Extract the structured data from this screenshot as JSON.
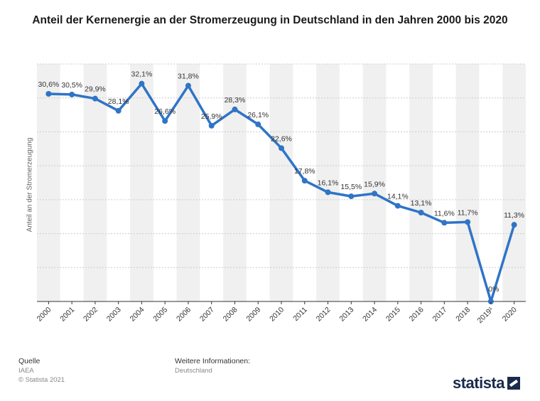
{
  "title": "Anteil der Kernenergie an der Stromerzeugung in Deutschland in den Jahren 2000 bis 2020",
  "footer": {
    "source_label": "Quelle",
    "source_value": "IAEA",
    "copyright": "© Statista 2021",
    "info_label": "Weitere Informationen:",
    "info_value": "Deutschland"
  },
  "logo": "statista",
  "colors": {
    "line": "#2f74c7",
    "band": "#f0f0f0",
    "grid": "#cccccc"
  },
  "chart_data": {
    "type": "line",
    "title": "Anteil der Kernenergie an der Stromerzeugung in Deutschland in den Jahren 2000 bis 2020",
    "xlabel": "",
    "ylabel": "Anteil an der Stromerzeugung",
    "categories": [
      "2000",
      "2001",
      "2002",
      "2003",
      "2004",
      "2005",
      "2006",
      "2007",
      "2008",
      "2009",
      "2010",
      "2011",
      "2012",
      "2013",
      "2014",
      "2015",
      "2016",
      "2017",
      "2018",
      "2019¹",
      "2020"
    ],
    "values": [
      30.6,
      30.5,
      29.9,
      28.1,
      32.1,
      26.6,
      31.8,
      25.9,
      28.3,
      26.1,
      22.6,
      17.8,
      16.1,
      15.5,
      15.9,
      14.1,
      13.1,
      11.6,
      11.7,
      0,
      11.3
    ],
    "data_labels": [
      "30,6%",
      "30,5%",
      "29,9%",
      "28,1%",
      "32,1%",
      "26,6%",
      "31,8%",
      "25,9%",
      "28,3%",
      "26,1%",
      "22,6%",
      "17,8%",
      "16,1%",
      "15,5%",
      "15,9%",
      "14,1%",
      "13,1%",
      "11,6%",
      "11,7%",
      "0%",
      "11,3%"
    ],
    "ylim": [
      0,
      35
    ],
    "grid": true
  }
}
